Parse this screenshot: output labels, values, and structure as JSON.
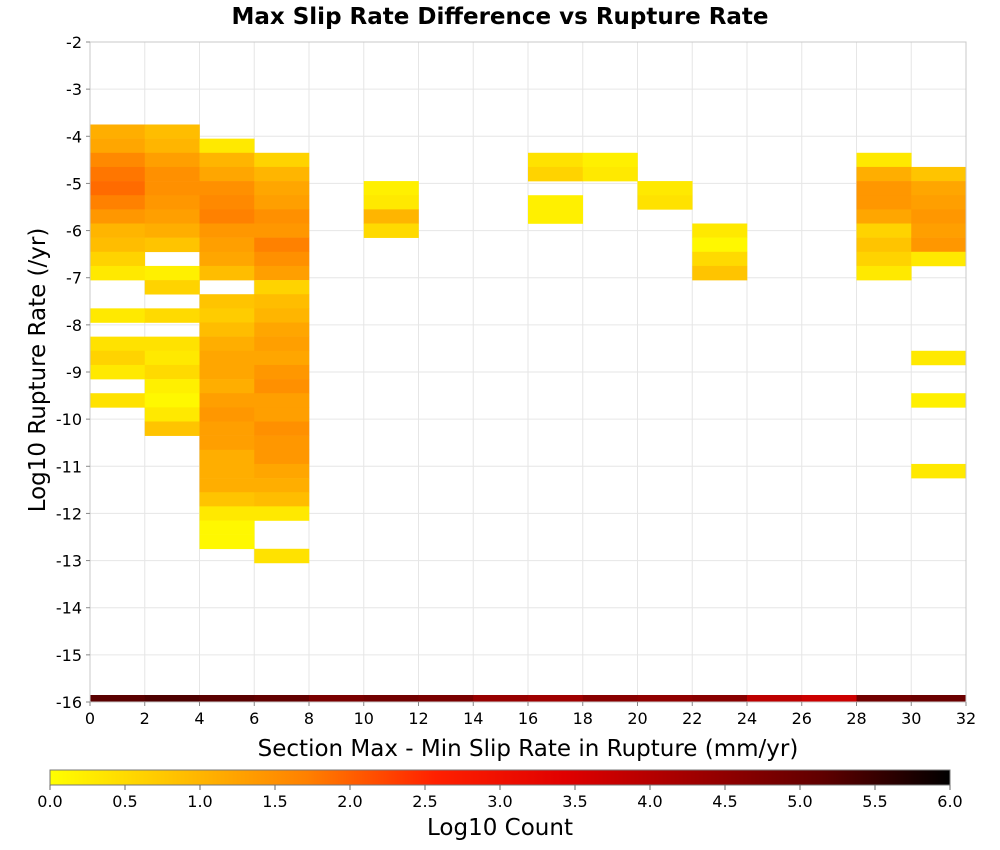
{
  "chart_data": {
    "type": "heatmap",
    "title": "Max Slip Rate Difference vs Rupture Rate",
    "xlabel": "Section Max - Min Slip Rate in Rupture (mm/yr)",
    "ylabel": "Log10 Rupture Rate (/yr)",
    "xlim": [
      0,
      32
    ],
    "ylim": [
      -16,
      -2
    ],
    "x_ticks": [
      "0",
      "2",
      "4",
      "6",
      "8",
      "10",
      "12",
      "14",
      "16",
      "18",
      "20",
      "22",
      "24",
      "26",
      "28",
      "30",
      "32"
    ],
    "y_ticks": [
      "-2",
      "-3",
      "-4",
      "-5",
      "-6",
      "-7",
      "-8",
      "-9",
      "-10",
      "-11",
      "-12",
      "-13",
      "-14",
      "-15",
      "-16"
    ],
    "grid": true,
    "bin_width_x": 2,
    "bin_height_y": 0.3,
    "colorbar": {
      "label": "Log10 Count",
      "min": 0.0,
      "max": 6.0,
      "ticks": [
        "0.0",
        "0.5",
        "1.0",
        "1.5",
        "2.0",
        "2.5",
        "3.0",
        "3.5",
        "4.0",
        "4.5",
        "5.0",
        "5.5",
        "6.0"
      ],
      "stops": [
        "#ffff00",
        "#ffc000",
        "#ff8000",
        "#ff2000",
        "#e00000",
        "#a00000",
        "#600000",
        "#000000"
      ]
    },
    "cells": [
      [
        0,
        -3.9,
        1.1
      ],
      [
        0,
        -4.2,
        1.2
      ],
      [
        0,
        -4.5,
        1.6
      ],
      [
        0,
        -4.8,
        1.8
      ],
      [
        0,
        -5.1,
        1.9
      ],
      [
        0,
        -5.4,
        1.7
      ],
      [
        0,
        -5.7,
        1.4
      ],
      [
        0,
        -6.0,
        1.0
      ],
      [
        0,
        -6.3,
        0.9
      ],
      [
        0,
        -6.6,
        0.6
      ],
      [
        0,
        -6.9,
        0.3
      ],
      [
        0,
        -7.8,
        0.3
      ],
      [
        0,
        -8.4,
        0.4
      ],
      [
        0,
        -8.7,
        0.6
      ],
      [
        0,
        -9.0,
        0.3
      ],
      [
        0,
        -9.6,
        0.4
      ],
      [
        2,
        -3.9,
        0.9
      ],
      [
        2,
        -4.2,
        1.0
      ],
      [
        2,
        -4.5,
        1.3
      ],
      [
        2,
        -4.8,
        1.5
      ],
      [
        2,
        -5.1,
        1.5
      ],
      [
        2,
        -5.4,
        1.4
      ],
      [
        2,
        -5.7,
        1.3
      ],
      [
        2,
        -6.0,
        1.1
      ],
      [
        2,
        -6.3,
        0.8
      ],
      [
        2,
        -6.9,
        0.2
      ],
      [
        2,
        -7.2,
        0.6
      ],
      [
        2,
        -7.8,
        0.5
      ],
      [
        2,
        -8.4,
        0.4
      ],
      [
        2,
        -8.7,
        0.3
      ],
      [
        2,
        -9.0,
        0.5
      ],
      [
        2,
        -9.3,
        0.2
      ],
      [
        2,
        -9.6,
        0.1
      ],
      [
        2,
        -9.9,
        0.3
      ],
      [
        2,
        -10.2,
        0.8
      ],
      [
        4,
        -4.2,
        0.3
      ],
      [
        4,
        -4.5,
        1.0
      ],
      [
        4,
        -4.8,
        1.2
      ],
      [
        4,
        -5.1,
        1.5
      ],
      [
        4,
        -5.4,
        1.6
      ],
      [
        4,
        -5.7,
        1.7
      ],
      [
        4,
        -6.0,
        1.4
      ],
      [
        4,
        -6.3,
        1.3
      ],
      [
        4,
        -6.6,
        1.2
      ],
      [
        4,
        -6.9,
        0.9
      ],
      [
        4,
        -7.5,
        0.8
      ],
      [
        4,
        -7.8,
        0.7
      ],
      [
        4,
        -8.1,
        0.9
      ],
      [
        4,
        -8.4,
        1.1
      ],
      [
        4,
        -8.7,
        1.2
      ],
      [
        4,
        -9.0,
        1.2
      ],
      [
        4,
        -9.3,
        1.1
      ],
      [
        4,
        -9.6,
        1.3
      ],
      [
        4,
        -9.9,
        1.4
      ],
      [
        4,
        -10.2,
        1.3
      ],
      [
        4,
        -10.5,
        1.3
      ],
      [
        4,
        -10.8,
        1.1
      ],
      [
        4,
        -11.1,
        1.1
      ],
      [
        4,
        -11.4,
        1.1
      ],
      [
        4,
        -11.7,
        0.8
      ],
      [
        4,
        -12.0,
        0.3
      ],
      [
        4,
        -12.3,
        0.1
      ],
      [
        4,
        -12.6,
        0.1
      ],
      [
        6,
        -4.5,
        0.6
      ],
      [
        6,
        -4.8,
        1.0
      ],
      [
        6,
        -5.1,
        1.2
      ],
      [
        6,
        -5.4,
        1.3
      ],
      [
        6,
        -5.7,
        1.5
      ],
      [
        6,
        -6.0,
        1.4
      ],
      [
        6,
        -6.3,
        1.7
      ],
      [
        6,
        -6.6,
        1.5
      ],
      [
        6,
        -6.9,
        1.3
      ],
      [
        6,
        -7.2,
        0.6
      ],
      [
        6,
        -7.5,
        0.9
      ],
      [
        6,
        -7.8,
        1.0
      ],
      [
        6,
        -8.1,
        1.2
      ],
      [
        6,
        -8.4,
        1.3
      ],
      [
        6,
        -8.7,
        1.2
      ],
      [
        6,
        -9.0,
        1.4
      ],
      [
        6,
        -9.3,
        1.5
      ],
      [
        6,
        -9.6,
        1.3
      ],
      [
        6,
        -9.9,
        1.3
      ],
      [
        6,
        -10.2,
        1.5
      ],
      [
        6,
        -10.5,
        1.4
      ],
      [
        6,
        -10.8,
        1.4
      ],
      [
        6,
        -11.1,
        1.2
      ],
      [
        6,
        -11.4,
        1.1
      ],
      [
        6,
        -11.7,
        0.9
      ],
      [
        6,
        -12.0,
        0.3
      ],
      [
        6,
        -12.9,
        0.4
      ],
      [
        10,
        -5.1,
        0.2
      ],
      [
        10,
        -5.4,
        0.3
      ],
      [
        10,
        -5.7,
        1.0
      ],
      [
        10,
        -6.0,
        0.5
      ],
      [
        16,
        -4.5,
        0.4
      ],
      [
        16,
        -4.8,
        0.6
      ],
      [
        16,
        -5.4,
        0.2
      ],
      [
        16,
        -5.7,
        0.2
      ],
      [
        18,
        -4.5,
        0.2
      ],
      [
        18,
        -4.8,
        0.3
      ],
      [
        20,
        -5.1,
        0.3
      ],
      [
        20,
        -5.4,
        0.4
      ],
      [
        22,
        -6.0,
        0.3
      ],
      [
        22,
        -6.3,
        0.1
      ],
      [
        22,
        -6.6,
        0.5
      ],
      [
        22,
        -6.9,
        0.8
      ],
      [
        28,
        -4.5,
        0.3
      ],
      [
        28,
        -4.8,
        1.1
      ],
      [
        28,
        -5.1,
        1.4
      ],
      [
        28,
        -5.4,
        1.4
      ],
      [
        28,
        -5.7,
        1.2
      ],
      [
        28,
        -6.0,
        0.6
      ],
      [
        28,
        -6.3,
        0.8
      ],
      [
        28,
        -6.6,
        0.6
      ],
      [
        28,
        -6.9,
        0.3
      ],
      [
        30,
        -4.8,
        0.8
      ],
      [
        30,
        -5.1,
        1.2
      ],
      [
        30,
        -5.4,
        1.3
      ],
      [
        30,
        -5.7,
        1.4
      ],
      [
        30,
        -6.0,
        1.3
      ],
      [
        30,
        -6.3,
        1.4
      ],
      [
        30,
        -6.6,
        0.3
      ],
      [
        30,
        -8.7,
        0.3
      ],
      [
        30,
        -9.6,
        0.2
      ],
      [
        30,
        -11.1,
        0.3
      ]
    ],
    "bottom_band": {
      "y": -16,
      "values": [
        [
          0,
          5.2
        ],
        [
          2,
          5.3
        ],
        [
          4,
          5.2
        ],
        [
          6,
          5.1
        ],
        [
          8,
          4.8
        ],
        [
          10,
          4.9
        ],
        [
          12,
          4.8
        ],
        [
          14,
          4.4
        ],
        [
          16,
          4.3
        ],
        [
          18,
          4.6
        ],
        [
          20,
          4.5
        ],
        [
          22,
          4.6
        ],
        [
          24,
          3.9
        ],
        [
          26,
          3.7
        ],
        [
          28,
          4.9
        ],
        [
          30,
          5.0
        ]
      ]
    }
  }
}
